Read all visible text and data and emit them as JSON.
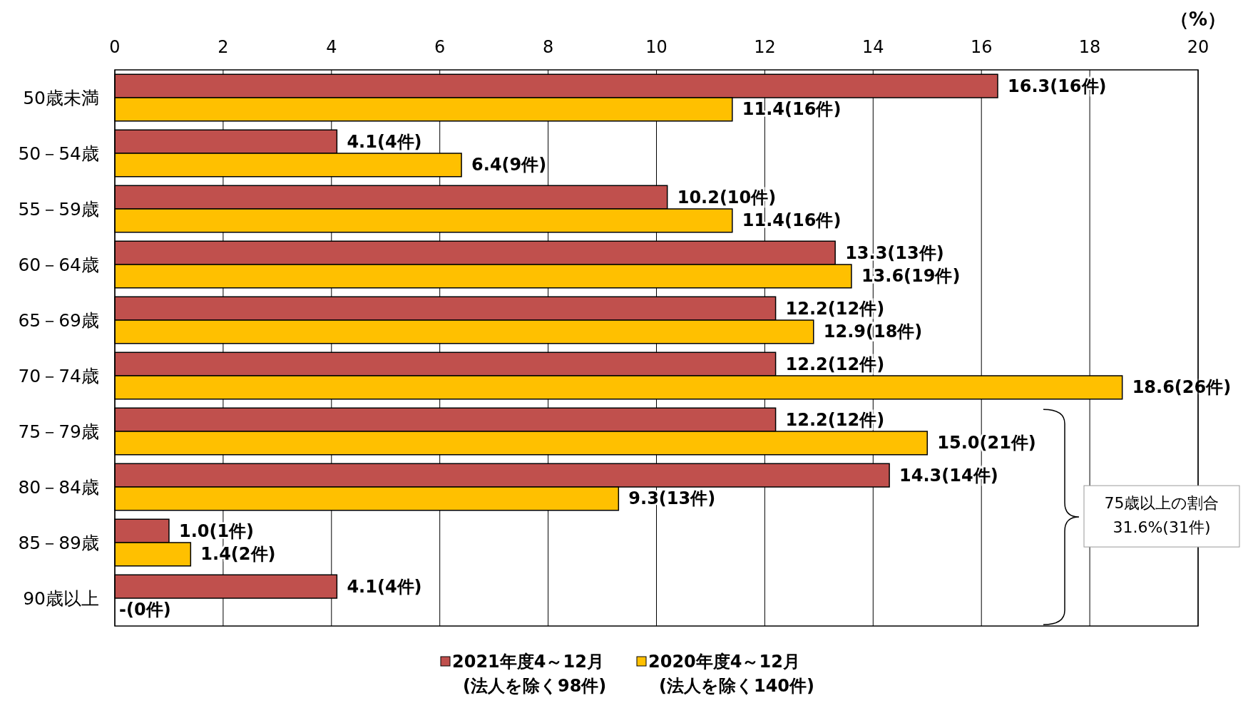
{
  "chart_data": {
    "type": "bar",
    "orientation": "horizontal",
    "xlabel": "（%）",
    "categories": [
      "50歳未満",
      "50－54歳",
      "55－59歳",
      "60－64歳",
      "65－69歳",
      "70－74歳",
      "75－79歳",
      "80－84歳",
      "85－89歳",
      "90歳以上"
    ],
    "series": [
      {
        "name": "2021年度4～12月\n(法人を除く98件)",
        "color": "#c0504d",
        "values": [
          16.3,
          4.1,
          10.2,
          13.3,
          12.2,
          12.2,
          12.2,
          14.3,
          1.0,
          4.1
        ],
        "value_labels": [
          "16.3(16件)",
          "4.1(4件)",
          "10.2(10件)",
          "13.3(13件)",
          "12.2(12件)",
          "12.2(12件)",
          "12.2(12件)",
          "14.3(14件)",
          "1.0(1件)",
          "4.1(4件)"
        ]
      },
      {
        "name": "2020年度4～12月\n(法人を除く140件)",
        "color": "#ffc000",
        "values": [
          11.4,
          6.4,
          11.4,
          13.6,
          12.9,
          18.6,
          15.0,
          9.3,
          1.4,
          0
        ],
        "value_labels": [
          "11.4(16件)",
          "6.4(9件)",
          "11.4(16件)",
          "13.6(19件)",
          "12.9(18件)",
          "18.6(26件)",
          "15.0(21件)",
          "9.3(13件)",
          "1.4(2件)",
          "-(0件)"
        ]
      }
    ],
    "xlim": [
      0,
      20
    ],
    "xticks": [
      0,
      2,
      4,
      6,
      8,
      10,
      12,
      14,
      16,
      18,
      20
    ],
    "grid": "x",
    "legend": "bottom",
    "annotations": [
      "75歳以上の割合\n31.6%(31件)"
    ]
  }
}
